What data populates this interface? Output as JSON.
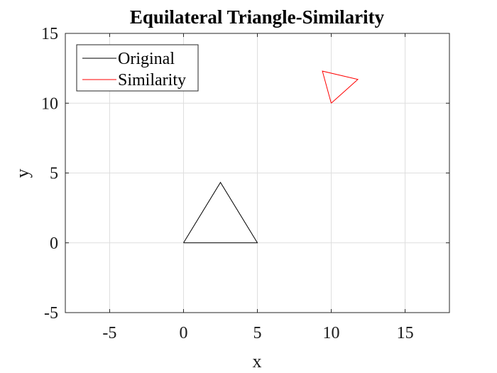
{
  "chart_data": {
    "type": "line",
    "title": "Equilateral Triangle-Similarity",
    "xlabel": "x",
    "ylabel": "y",
    "xlim": [
      -8,
      18
    ],
    "ylim": [
      -5,
      15
    ],
    "xticks": [
      -5,
      0,
      5,
      10,
      15
    ],
    "yticks": [
      -5,
      0,
      5,
      10,
      15
    ],
    "xtick_labels": [
      "-5",
      "0",
      "5",
      "10",
      "15"
    ],
    "ytick_labels": [
      "-5",
      "0",
      "5",
      "10",
      "15"
    ],
    "grid": true,
    "legend_location": "top-left",
    "series": [
      {
        "name": "Original",
        "color": "#000000",
        "x": [
          0,
          5,
          2.5,
          0
        ],
        "y": [
          0,
          0,
          4.33,
          0
        ]
      },
      {
        "name": "Similarity",
        "color": "#ff0000",
        "x": [
          10,
          11.8,
          9.4,
          10
        ],
        "y": [
          10,
          11.7,
          12.3,
          10
        ]
      }
    ]
  }
}
